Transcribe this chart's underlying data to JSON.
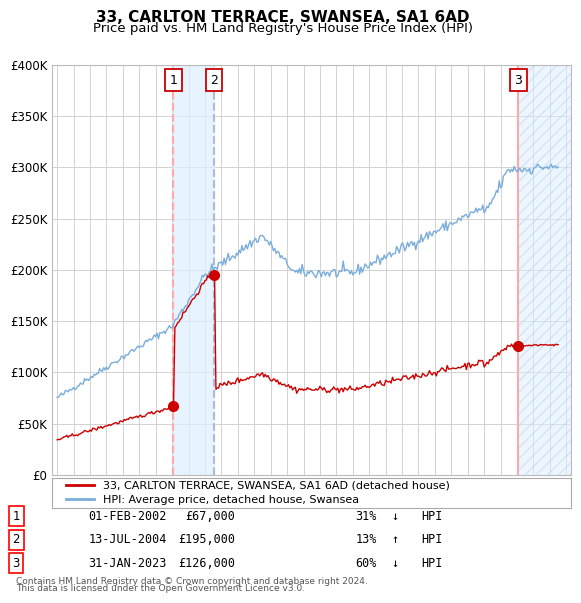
{
  "title": "33, CARLTON TERRACE, SWANSEA, SA1 6AD",
  "subtitle": "Price paid vs. HM Land Registry's House Price Index (HPI)",
  "legend_label_red": "33, CARLTON TERRACE, SWANSEA, SA1 6AD (detached house)",
  "legend_label_blue": "HPI: Average price, detached house, Swansea",
  "footer_line1": "Contains HM Land Registry data © Crown copyright and database right 2024.",
  "footer_line2": "This data is licensed under the Open Government Licence v3.0.",
  "ylim": [
    0,
    400000
  ],
  "yticks": [
    0,
    50000,
    100000,
    150000,
    200000,
    250000,
    300000,
    350000,
    400000
  ],
  "ytick_labels": [
    "£0",
    "£50K",
    "£100K",
    "£150K",
    "£200K",
    "£250K",
    "£300K",
    "£350K",
    "£400K"
  ],
  "xlim_start": 1994.7,
  "xlim_end": 2026.3,
  "transactions": [
    {
      "num": 1,
      "date": "01-FEB-2002",
      "price": 67000,
      "pct": "31%",
      "dir": "↓",
      "year": 2002.08
    },
    {
      "num": 2,
      "date": "13-JUL-2004",
      "price": 195000,
      "pct": "13%",
      "dir": "↑",
      "year": 2004.54
    },
    {
      "num": 3,
      "date": "31-JAN-2023",
      "price": 126000,
      "pct": "60%",
      "dir": "↓",
      "year": 2023.08
    }
  ],
  "hpi_color": "#7aadda",
  "price_color": "#cc0000",
  "table_data": [
    [
      "1",
      "01-FEB-2002",
      "£67,000",
      "31%",
      "↓",
      "HPI"
    ],
    [
      "2",
      "13-JUL-2004",
      "£195,000",
      "13%",
      "↑",
      "HPI"
    ],
    [
      "3",
      "31-JAN-2023",
      "£126,000",
      "60%",
      "↓",
      "HPI"
    ]
  ],
  "background_color": "#ffffff",
  "grid_color": "#cccccc"
}
